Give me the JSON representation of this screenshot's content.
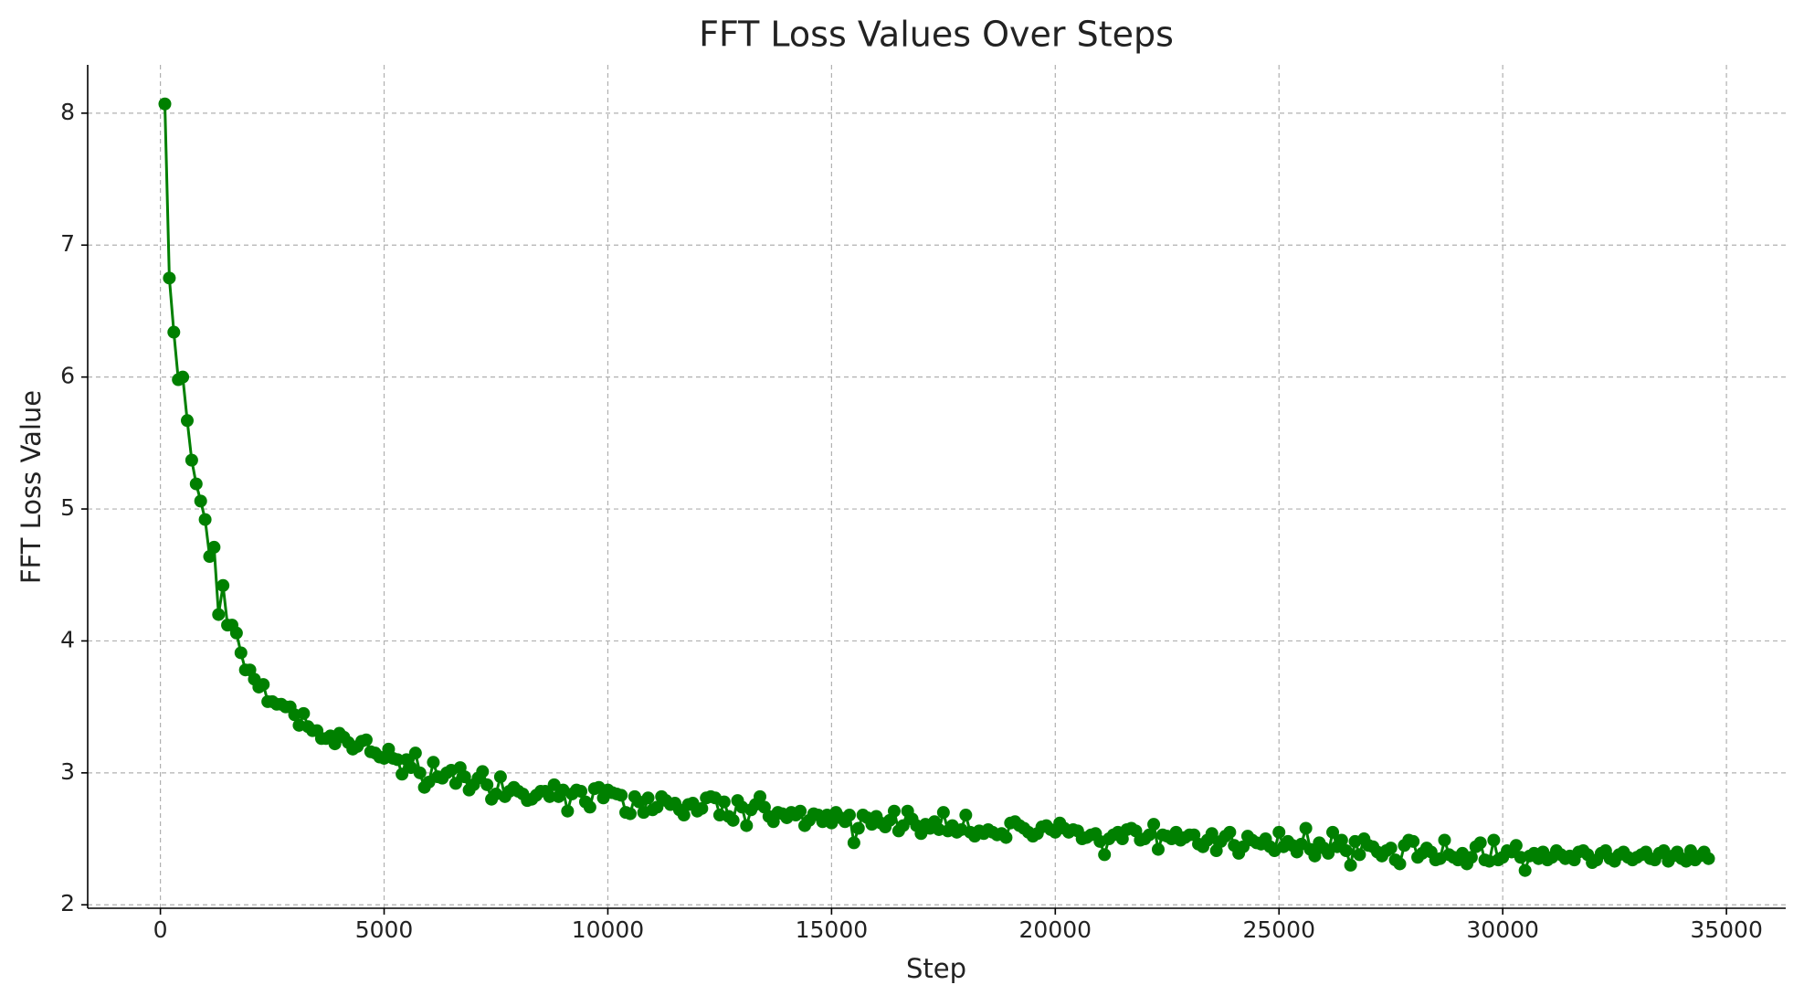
{
  "chart_data": {
    "type": "line",
    "title": "FFT Loss Values Over Steps",
    "x_label": "Step",
    "y_label": "FFT Loss Value",
    "color": "#008000",
    "grid": true,
    "xlim": [
      -1625,
      36325
    ],
    "xticks": [
      0,
      5000,
      10000,
      15000,
      20000,
      25000,
      30000,
      35000
    ],
    "ylim": [
      1.974,
      8.366
    ],
    "yticks": [
      2,
      3,
      4,
      5,
      6,
      7,
      8
    ],
    "x": [
      100,
      200,
      300,
      400,
      500,
      600,
      700,
      800,
      900,
      1000,
      1100,
      1200,
      1300,
      1400,
      1500,
      1600,
      1700,
      1800,
      1900,
      2000,
      2100,
      2200,
      2300,
      2400,
      2500,
      2600,
      2700,
      2800,
      2900,
      3000,
      3100,
      3200,
      3300,
      3400,
      3500,
      3600,
      3700,
      3800,
      3900,
      4000,
      4100,
      4200,
      4300,
      4400,
      4500,
      4600,
      4700,
      4800,
      4900,
      5000,
      5100,
      5200,
      5300,
      5400,
      5500,
      5600,
      5700,
      5800,
      5900,
      6000,
      6100,
      6200,
      6300,
      6400,
      6500,
      6600,
      6700,
      6800,
      6900,
      7000,
      7100,
      7200,
      7300,
      7400,
      7500,
      7600,
      7700,
      7800,
      7900,
      8000,
      8100,
      8200,
      8300,
      8400,
      8500,
      8600,
      8700,
      8800,
      8900,
      9000,
      9100,
      9200,
      9300,
      9400,
      9500,
      9600,
      9700,
      9800,
      9900,
      10000,
      10100,
      10200,
      10300,
      10400,
      10500,
      10600,
      10700,
      10800,
      10900,
      11000,
      11100,
      11200,
      11300,
      11400,
      11500,
      11600,
      11700,
      11800,
      11900,
      12000,
      12100,
      12200,
      12300,
      12400,
      12500,
      12600,
      12700,
      12800,
      12900,
      13000,
      13100,
      13200,
      13300,
      13400,
      13500,
      13600,
      13700,
      13800,
      13900,
      14000,
      14100,
      14200,
      14300,
      14400,
      14500,
      14600,
      14700,
      14800,
      14900,
      15000,
      15100,
      15200,
      15300,
      15400,
      15500,
      15600,
      15700,
      15800,
      15900,
      16000,
      16100,
      16200,
      16300,
      16400,
      16500,
      16600,
      16700,
      16800,
      16900,
      17000,
      17100,
      17200,
      17300,
      17400,
      17500,
      17600,
      17700,
      17800,
      17900,
      18000,
      18100,
      18200,
      18300,
      18400,
      18500,
      18600,
      18700,
      18800,
      18900,
      19000,
      19100,
      19200,
      19300,
      19400,
      19500,
      19600,
      19700,
      19800,
      19900,
      20000,
      20100,
      20200,
      20300,
      20400,
      20500,
      20600,
      20700,
      20800,
      20900,
      21000,
      21100,
      21200,
      21300,
      21400,
      21500,
      21600,
      21700,
      21800,
      21900,
      22000,
      22100,
      22200,
      22300,
      22400,
      22500,
      22600,
      22700,
      22800,
      22900,
      23000,
      23100,
      23200,
      23300,
      23400,
      23500,
      23600,
      23700,
      23800,
      23900,
      24000,
      24100,
      24200,
      24300,
      24400,
      24500,
      24600,
      24700,
      24800,
      24900,
      25000,
      25100,
      25200,
      25300,
      25400,
      25500,
      25600,
      25700,
      25800,
      25900,
      26000,
      26100,
      26200,
      26300,
      26400,
      26500,
      26600,
      26700,
      26800,
      26900,
      27000,
      27100,
      27200,
      27300,
      27400,
      27500,
      27600,
      27700,
      27800,
      27900,
      28000,
      28100,
      28200,
      28300,
      28400,
      28500,
      28600,
      28700,
      28800,
      28900,
      29000,
      29100,
      29200,
      29300,
      29400,
      29500,
      29600,
      29700,
      29800,
      29900,
      30000,
      30100,
      30200,
      30300,
      30400,
      30500,
      30600,
      30700,
      30800,
      30900,
      31000,
      31100,
      31200,
      31300,
      31400,
      31500,
      31600,
      31700,
      31800,
      31900,
      32000,
      32100,
      32200,
      32300,
      32400,
      32500,
      32600,
      32700,
      32800,
      32900,
      33000,
      33100,
      33200,
      33300,
      33400,
      33500,
      33600,
      33700,
      33800,
      33900,
      34000,
      34100,
      34200,
      34300,
      34400,
      34500,
      34600
    ],
    "values": [
      8.07,
      6.75,
      6.34,
      5.98,
      6.0,
      5.67,
      5.37,
      5.19,
      5.06,
      4.92,
      4.64,
      4.71,
      4.2,
      4.42,
      4.12,
      4.12,
      4.06,
      3.91,
      3.78,
      3.78,
      3.71,
      3.65,
      3.67,
      3.54,
      3.54,
      3.52,
      3.52,
      3.5,
      3.5,
      3.44,
      3.36,
      3.45,
      3.35,
      3.32,
      3.32,
      3.26,
      3.26,
      3.28,
      3.22,
      3.3,
      3.27,
      3.23,
      3.18,
      3.2,
      3.24,
      3.25,
      3.16,
      3.15,
      3.12,
      3.11,
      3.18,
      3.11,
      3.1,
      2.99,
      3.1,
      3.04,
      3.15,
      3.0,
      2.89,
      2.93,
      3.08,
      2.97,
      2.96,
      3.0,
      3.02,
      2.92,
      3.04,
      2.97,
      2.87,
      2.91,
      2.96,
      3.01,
      2.91,
      2.8,
      2.84,
      2.97,
      2.82,
      2.86,
      2.89,
      2.86,
      2.84,
      2.79,
      2.8,
      2.83,
      2.86,
      2.86,
      2.82,
      2.91,
      2.82,
      2.87,
      2.71,
      2.84,
      2.87,
      2.86,
      2.78,
      2.74,
      2.88,
      2.89,
      2.81,
      2.87,
      2.85,
      2.84,
      2.83,
      2.7,
      2.69,
      2.82,
      2.78,
      2.7,
      2.81,
      2.72,
      2.74,
      2.82,
      2.79,
      2.76,
      2.77,
      2.72,
      2.68,
      2.76,
      2.77,
      2.71,
      2.73,
      2.81,
      2.82,
      2.81,
      2.68,
      2.78,
      2.67,
      2.64,
      2.79,
      2.74,
      2.6,
      2.72,
      2.76,
      2.82,
      2.74,
      2.67,
      2.63,
      2.7,
      2.69,
      2.66,
      2.7,
      2.68,
      2.71,
      2.6,
      2.64,
      2.69,
      2.68,
      2.63,
      2.68,
      2.62,
      2.7,
      2.66,
      2.63,
      2.68,
      2.47,
      2.58,
      2.68,
      2.66,
      2.61,
      2.67,
      2.62,
      2.59,
      2.64,
      2.71,
      2.56,
      2.6,
      2.71,
      2.65,
      2.6,
      2.54,
      2.61,
      2.58,
      2.63,
      2.57,
      2.7,
      2.56,
      2.6,
      2.55,
      2.57,
      2.68,
      2.55,
      2.52,
      2.56,
      2.54,
      2.57,
      2.55,
      2.53,
      2.54,
      2.51,
      2.62,
      2.63,
      2.6,
      2.58,
      2.55,
      2.52,
      2.54,
      2.59,
      2.6,
      2.57,
      2.55,
      2.62,
      2.58,
      2.55,
      2.57,
      2.56,
      2.5,
      2.51,
      2.53,
      2.54,
      2.48,
      2.38,
      2.5,
      2.53,
      2.55,
      2.5,
      2.57,
      2.58,
      2.56,
      2.49,
      2.5,
      2.53,
      2.61,
      2.42,
      2.53,
      2.52,
      2.5,
      2.55,
      2.49,
      2.51,
      2.53,
      2.53,
      2.46,
      2.44,
      2.49,
      2.54,
      2.41,
      2.48,
      2.52,
      2.55,
      2.45,
      2.39,
      2.44,
      2.52,
      2.49,
      2.47,
      2.46,
      2.5,
      2.44,
      2.41,
      2.55,
      2.44,
      2.48,
      2.45,
      2.4,
      2.46,
      2.58,
      2.42,
      2.37,
      2.47,
      2.43,
      2.39,
      2.55,
      2.44,
      2.49,
      2.41,
      2.3,
      2.48,
      2.38,
      2.5,
      2.45,
      2.44,
      2.4,
      2.37,
      2.41,
      2.43,
      2.34,
      2.31,
      2.45,
      2.49,
      2.48,
      2.36,
      2.39,
      2.43,
      2.4,
      2.34,
      2.35,
      2.49,
      2.38,
      2.36,
      2.34,
      2.39,
      2.31,
      2.36,
      2.44,
      2.47,
      2.34,
      2.33,
      2.49,
      2.34,
      2.36,
      2.41,
      2.4,
      2.45,
      2.36,
      2.26,
      2.37,
      2.39,
      2.35,
      2.4,
      2.34,
      2.36,
      2.41,
      2.38,
      2.35,
      2.37,
      2.34,
      2.4,
      2.41,
      2.38,
      2.32,
      2.34,
      2.39,
      2.41,
      2.35,
      2.33,
      2.38,
      2.4,
      2.36,
      2.34,
      2.36,
      2.38,
      2.4,
      2.35,
      2.34,
      2.39,
      2.41,
      2.33,
      2.37,
      2.4,
      2.35,
      2.33,
      2.41,
      2.34,
      2.37,
      2.4,
      2.35
    ]
  }
}
